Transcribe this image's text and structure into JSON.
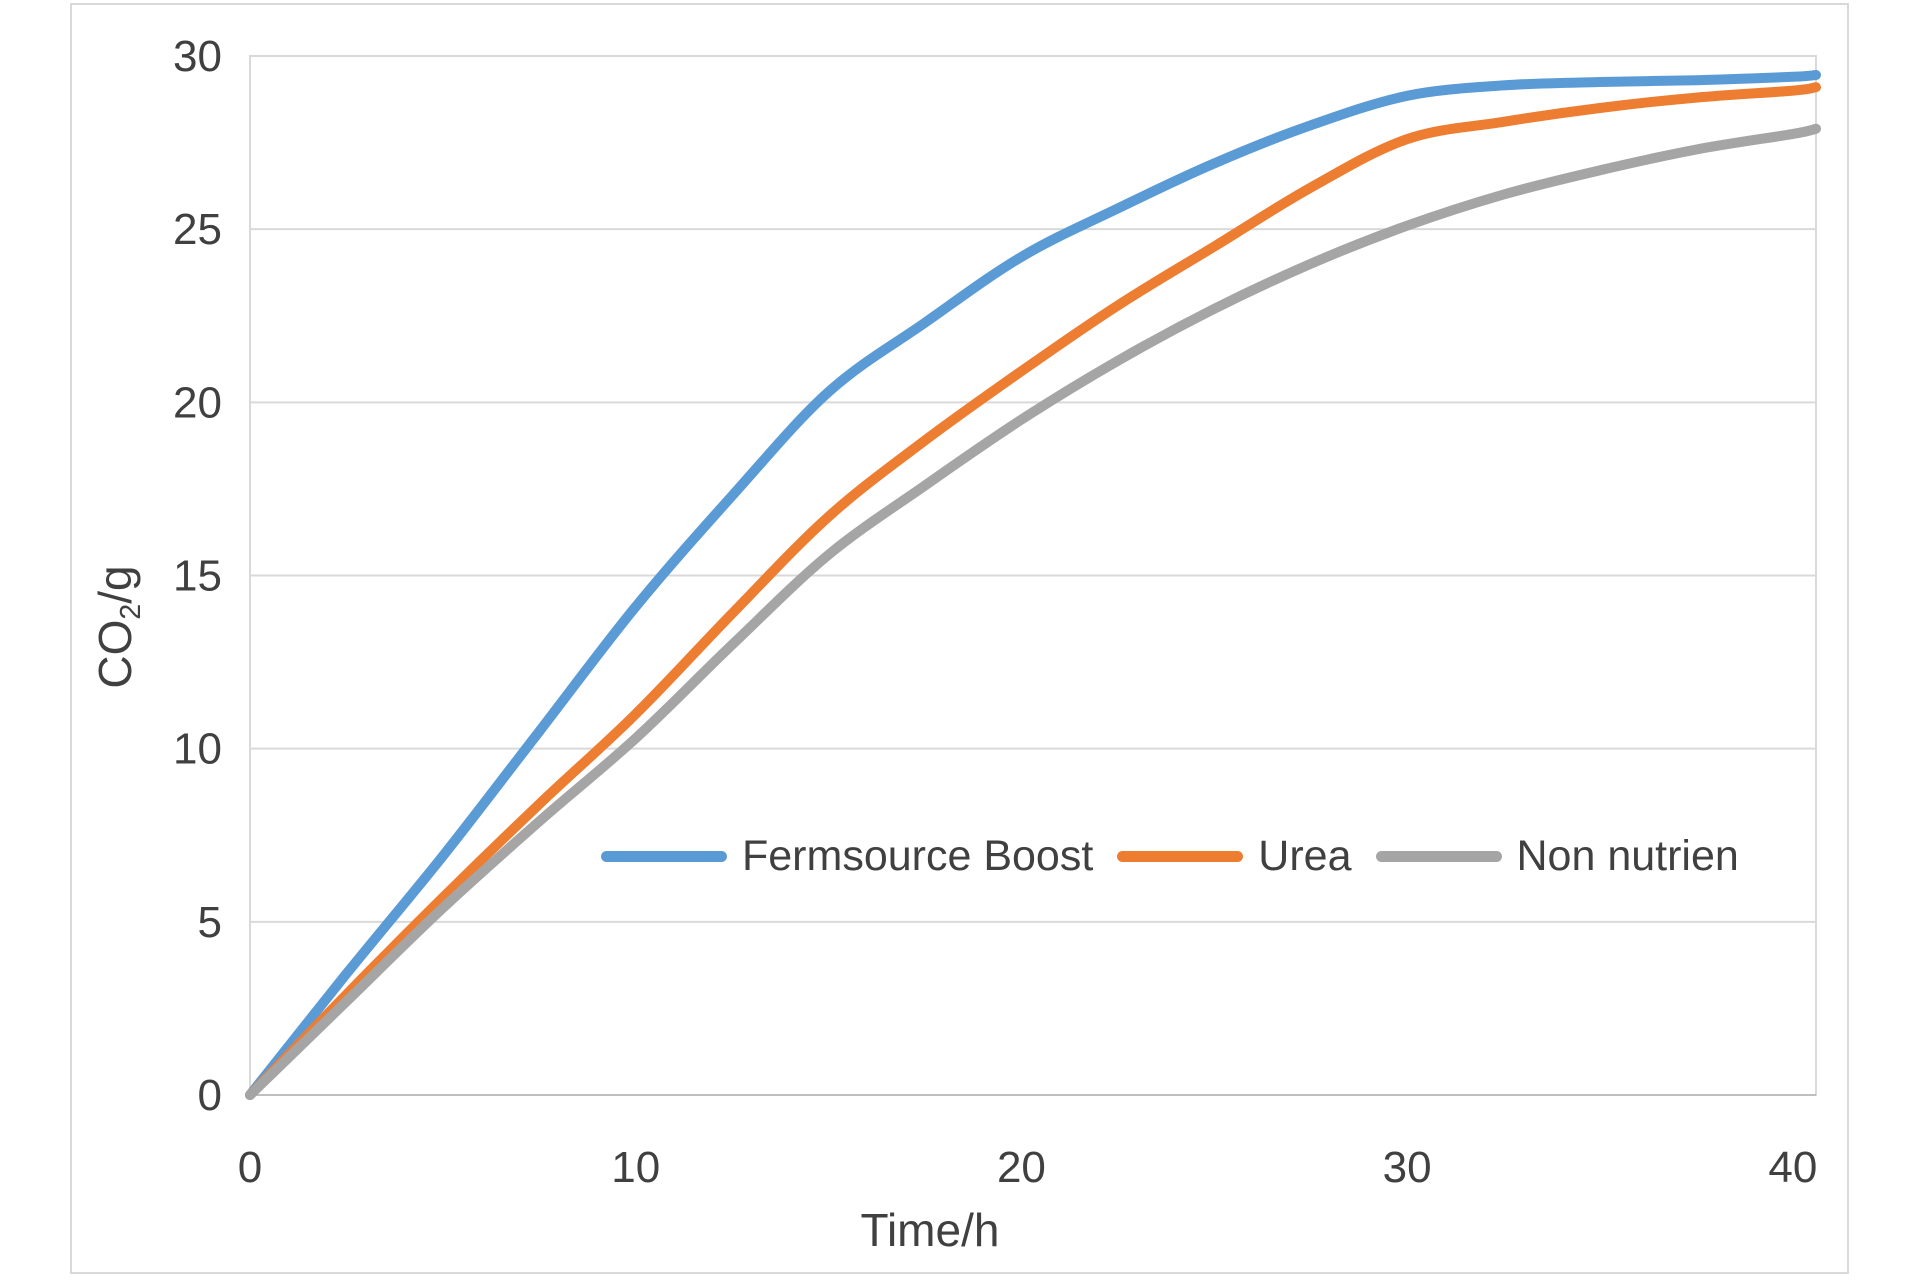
{
  "chart_data": {
    "type": "line",
    "title": "",
    "xlabel": "Time/h",
    "ylabel": {
      "prefix": "CO",
      "sub": "2",
      "suffix": "/g"
    },
    "xlim": [
      0,
      40.6
    ],
    "ylim": [
      0,
      30
    ],
    "x_ticks": [
      0,
      10,
      20,
      30,
      40
    ],
    "y_ticks": [
      0,
      5,
      10,
      15,
      20,
      25,
      30
    ],
    "grid": "horizontal-only",
    "legend_position": "inside-plot, horizontal row, lower middle",
    "x": [
      0,
      2.5,
      5,
      7.5,
      10,
      12.5,
      15,
      17.5,
      20,
      22.5,
      25,
      27.5,
      30,
      32.5,
      35,
      37.5,
      40,
      40.6
    ],
    "series": [
      {
        "name": "Fermsource Boost",
        "color": "#5B9BD5",
        "values": [
          0,
          3.5,
          6.9,
          10.5,
          14.1,
          17.3,
          20.3,
          22.3,
          24.2,
          25.6,
          26.9,
          28.0,
          28.85,
          29.15,
          29.25,
          29.3,
          29.4,
          29.45
        ]
      },
      {
        "name": "Urea",
        "color": "#ED7D31",
        "values": [
          0,
          2.9,
          5.7,
          8.4,
          11.0,
          13.9,
          16.7,
          18.9,
          20.9,
          22.8,
          24.5,
          26.2,
          27.6,
          28.1,
          28.5,
          28.8,
          29.0,
          29.1
        ]
      },
      {
        "name": "Non nutrien",
        "color": "#A5A5A5",
        "values": [
          0,
          2.7,
          5.4,
          7.9,
          10.3,
          13.0,
          15.6,
          17.6,
          19.5,
          21.2,
          22.7,
          24.0,
          25.1,
          26.0,
          26.7,
          27.3,
          27.75,
          27.9
        ]
      }
    ]
  }
}
